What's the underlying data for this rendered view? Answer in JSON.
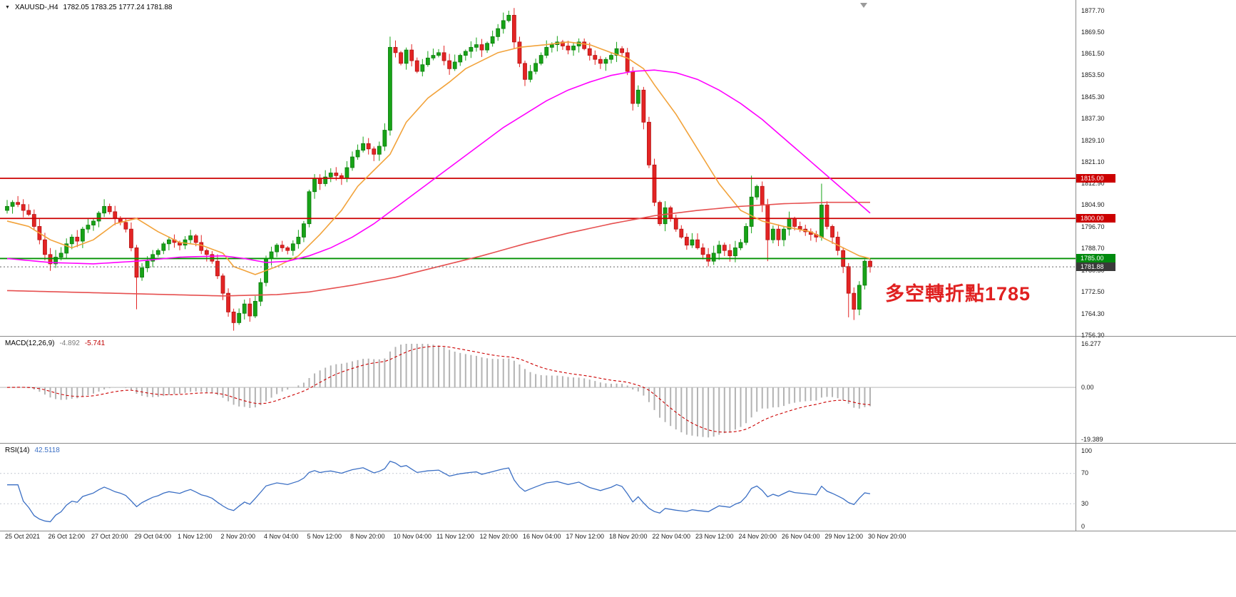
{
  "header": {
    "dropdown_icon": "▼",
    "symbol": "XAUUSD-,H4",
    "ohlc": "1782.05 1783.25 1777.24 1781.88"
  },
  "annotation": {
    "text": "多空轉折點1785"
  },
  "colors": {
    "bull": "#17a317",
    "bull_stroke": "#0e7a0e",
    "bear": "#e32424",
    "bear_stroke": "#b51313",
    "ma_fast": "#f2a33b",
    "ma_mid": "#ff00ff",
    "ma_slow": "#e65050",
    "hline_red": "#cc0000",
    "hline_green": "#009000",
    "last_price_line": "#666666",
    "macd_hist": "#b3b3b3",
    "macd_signal": "#cc0000",
    "rsi_line": "#3b6fc4",
    "level_dotted": "#c3c9d2",
    "annotation_red": "#e02020",
    "label_red_bg": "#cc0000",
    "label_green_bg": "#008a0e",
    "label_last_bg": "#3a3a3a"
  },
  "chart_data": {
    "type": "candlestick",
    "symbol": "XAUUSD-",
    "timeframe": "H4",
    "title": "XAUUSD-,H4  1782.05 1783.25 1777.24 1781.88",
    "last_price": 1781.88,
    "last_price_label": "1781.88",
    "first_open": 1803.0,
    "price_axis": {
      "range": [
        1756.3,
        1877.7
      ],
      "ticks": [
        "1877.70",
        "1869.50",
        "1861.50",
        "1853.50",
        "1845.30",
        "1837.30",
        "1829.10",
        "1821.10",
        "1812.90",
        "1804.90",
        "1796.70",
        "1788.70",
        "1780.50",
        "1772.50",
        "1764.30",
        "1756.30"
      ]
    },
    "time_axis_labels": [
      "25 Oct 2021",
      "26 Oct 12:00",
      "27 Oct 20:00",
      "29 Oct 04:00",
      "1 Nov 12:00",
      "2 Nov 20:00",
      "4 Nov 04:00",
      "5 Nov 12:00",
      "8 Nov 20:00",
      "10 Nov 04:00",
      "11 Nov 12:00",
      "12 Nov 20:00",
      "16 Nov 04:00",
      "17 Nov 12:00",
      "18 Nov 20:00",
      "22 Nov 04:00",
      "23 Nov 12:00",
      "24 Nov 20:00",
      "26 Nov 04:00",
      "29 Nov 12:00",
      "30 Nov 20:00"
    ],
    "candles_per_label": 8,
    "closes": [
      1804.5,
      1806,
      1805.2,
      1803,
      1801.5,
      1797,
      1792,
      1786.5,
      1783,
      1785.5,
      1787,
      1790.5,
      1793,
      1791.5,
      1796,
      1797.5,
      1799,
      1802,
      1804.5,
      1802.5,
      1800,
      1798.5,
      1796,
      1789,
      1778,
      1781.5,
      1784,
      1786.5,
      1788,
      1790.5,
      1792,
      1791,
      1790,
      1792,
      1793.5,
      1791,
      1788,
      1786.5,
      1784,
      1778.5,
      1772,
      1765,
      1761,
      1764.5,
      1768,
      1763.5,
      1769,
      1776,
      1785,
      1787.5,
      1790,
      1789,
      1788,
      1790.5,
      1793,
      1798,
      1810,
      1815,
      1813,
      1815.5,
      1817,
      1816,
      1815,
      1819,
      1823,
      1825.5,
      1828,
      1826,
      1824,
      1827,
      1833,
      1864,
      1862,
      1858,
      1863,
      1859,
      1855,
      1857.5,
      1860,
      1861,
      1862,
      1859,
      1856,
      1858.5,
      1861,
      1862.5,
      1864,
      1865,
      1863,
      1865.5,
      1868,
      1871,
      1874,
      1876,
      1866,
      1858,
      1852,
      1855,
      1858,
      1861,
      1864,
      1865,
      1866,
      1864.5,
      1863,
      1864.5,
      1866,
      1863.5,
      1861,
      1859.5,
      1858,
      1859.5,
      1861,
      1863.5,
      1862,
      1855,
      1843,
      1848,
      1836,
      1820,
      1806,
      1798,
      1804,
      1800,
      1796,
      1793,
      1790,
      1792,
      1789,
      1786.5,
      1784,
      1787,
      1790,
      1788,
      1786,
      1789,
      1791,
      1797,
      1808,
      1812,
      1805,
      1792,
      1796,
      1792,
      1796,
      1800,
      1797,
      1796,
      1795,
      1794,
      1793,
      1805,
      1797,
      1793,
      1788,
      1782,
      1772,
      1766,
      1775,
      1784,
      1781.88
    ],
    "wick_overrides": {
      "24": {
        "low": 1766
      },
      "42": {
        "low": 1758
      },
      "71": {
        "low": 1831,
        "high": 1868
      },
      "92": {
        "high": 1877
      },
      "93": {
        "high": 1877.7
      },
      "119": {
        "high": 1838
      },
      "138": {
        "high": 1816
      },
      "141": {
        "low": 1784
      },
      "151": {
        "high": 1813
      },
      "156": {
        "low": 1763
      },
      "157": {
        "low": 1762
      }
    },
    "horizontal_lines": [
      {
        "price": 1815.0,
        "label": "1815.00",
        "color": "hline_red"
      },
      {
        "price": 1800.0,
        "label": "1800.00",
        "color": "hline_red"
      },
      {
        "price": 1785.0,
        "label": "1785.00",
        "color": "hline_green"
      }
    ],
    "moving_averages": [
      {
        "name": "ma-fast-orange",
        "color": "ma_fast",
        "anchors": [
          [
            0,
            1799
          ],
          [
            4,
            1797
          ],
          [
            8,
            1792
          ],
          [
            12,
            1789
          ],
          [
            16,
            1792
          ],
          [
            20,
            1798
          ],
          [
            24,
            1800
          ],
          [
            28,
            1795
          ],
          [
            32,
            1791
          ],
          [
            36,
            1790
          ],
          [
            40,
            1787
          ],
          [
            42,
            1782
          ],
          [
            46,
            1779
          ],
          [
            50,
            1782
          ],
          [
            54,
            1786
          ],
          [
            58,
            1794
          ],
          [
            62,
            1803
          ],
          [
            65,
            1812
          ],
          [
            68,
            1818
          ],
          [
            71,
            1824
          ],
          [
            74,
            1836
          ],
          [
            78,
            1845
          ],
          [
            82,
            1851
          ],
          [
            85,
            1856
          ],
          [
            88,
            1859
          ],
          [
            91,
            1862
          ],
          [
            95,
            1864
          ],
          [
            100,
            1865
          ],
          [
            104,
            1866
          ],
          [
            108,
            1865
          ],
          [
            112,
            1862
          ],
          [
            115,
            1860
          ],
          [
            118,
            1856
          ],
          [
            120,
            1850
          ],
          [
            124,
            1839
          ],
          [
            128,
            1826
          ],
          [
            132,
            1813
          ],
          [
            136,
            1803
          ],
          [
            140,
            1799
          ],
          [
            144,
            1797
          ],
          [
            149,
            1795
          ],
          [
            153,
            1791
          ],
          [
            158,
            1786
          ],
          [
            160,
            1785
          ]
        ]
      },
      {
        "name": "ma-mid-magenta",
        "color": "ma_mid",
        "anchors": [
          [
            0,
            1785
          ],
          [
            8,
            1783.5
          ],
          [
            16,
            1783
          ],
          [
            24,
            1784
          ],
          [
            32,
            1785.5
          ],
          [
            40,
            1786
          ],
          [
            44,
            1785
          ],
          [
            48,
            1783.5
          ],
          [
            52,
            1784
          ],
          [
            56,
            1786
          ],
          [
            60,
            1789
          ],
          [
            64,
            1793
          ],
          [
            68,
            1798
          ],
          [
            72,
            1804
          ],
          [
            76,
            1810
          ],
          [
            80,
            1816
          ],
          [
            84,
            1822
          ],
          [
            88,
            1828
          ],
          [
            92,
            1834
          ],
          [
            96,
            1839
          ],
          [
            100,
            1844
          ],
          [
            104,
            1848
          ],
          [
            108,
            1851
          ],
          [
            112,
            1853.5
          ],
          [
            116,
            1855
          ],
          [
            120,
            1855.5
          ],
          [
            124,
            1854.5
          ],
          [
            128,
            1852
          ],
          [
            132,
            1848
          ],
          [
            136,
            1843
          ],
          [
            140,
            1837
          ],
          [
            144,
            1830
          ],
          [
            148,
            1823
          ],
          [
            152,
            1816
          ],
          [
            156,
            1809
          ],
          [
            160,
            1802
          ]
        ]
      },
      {
        "name": "ma-slow-red",
        "color": "ma_slow",
        "anchors": [
          [
            0,
            1773
          ],
          [
            10,
            1772.5
          ],
          [
            20,
            1772
          ],
          [
            30,
            1771.5
          ],
          [
            40,
            1771
          ],
          [
            50,
            1771.5
          ],
          [
            56,
            1772.5
          ],
          [
            64,
            1775
          ],
          [
            72,
            1778
          ],
          [
            80,
            1782
          ],
          [
            88,
            1786
          ],
          [
            96,
            1790.5
          ],
          [
            104,
            1794.5
          ],
          [
            112,
            1798
          ],
          [
            120,
            1801
          ],
          [
            128,
            1803
          ],
          [
            136,
            1804.5
          ],
          [
            144,
            1805.5
          ],
          [
            152,
            1806
          ],
          [
            160,
            1806
          ]
        ]
      }
    ],
    "indicators": {
      "macd": {
        "label": "MACD(12,26,9)",
        "fast": 12,
        "slow": 26,
        "signal_period": 9,
        "value_main": "-4.892",
        "value_signal": "-5.741",
        "axis_labels": [
          "16.277",
          "0.00",
          "-19.389"
        ],
        "axis_values": [
          16.277,
          0,
          -19.389
        ]
      },
      "rsi": {
        "label": "RSI(14)",
        "period": 14,
        "value": "42.5118",
        "axis_labels": [
          "100",
          "70",
          "30",
          "0"
        ],
        "axis_values": [
          100,
          70,
          30,
          0
        ],
        "levels": [
          70,
          30
        ],
        "range": [
          0,
          100
        ]
      }
    }
  }
}
